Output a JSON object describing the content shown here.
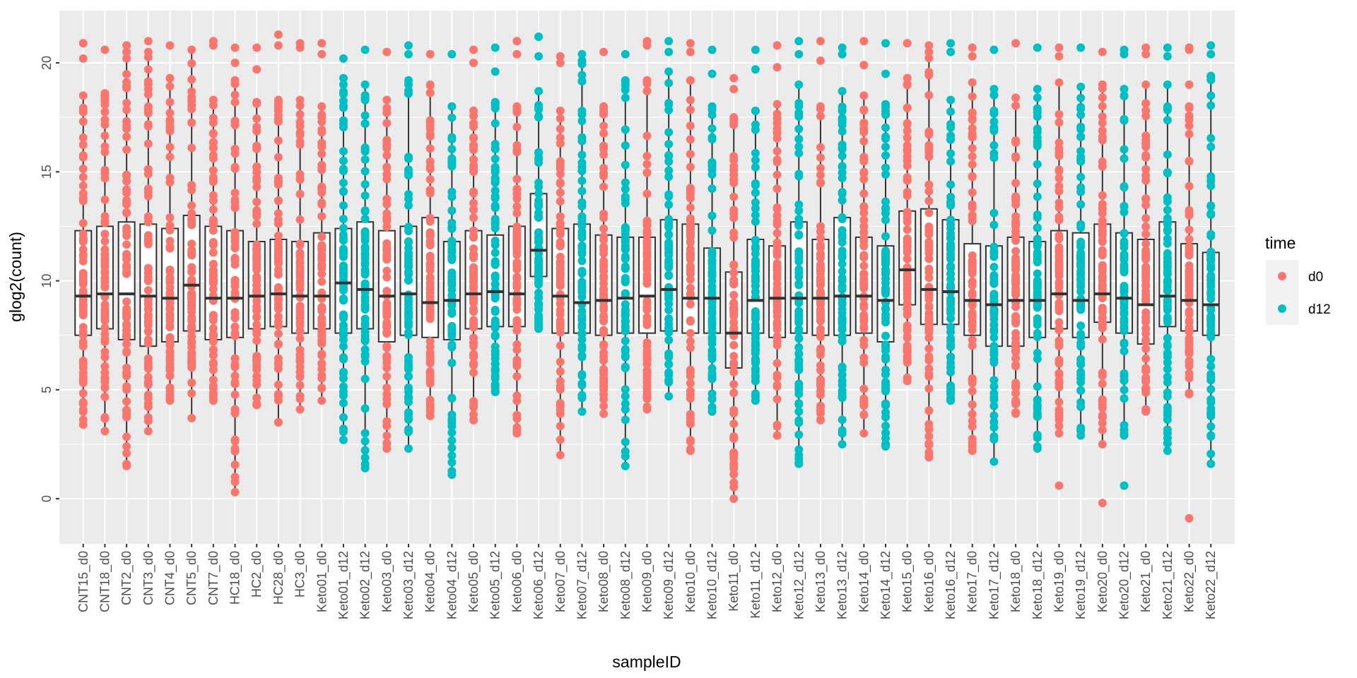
{
  "chart_data": {
    "type": "boxplot",
    "title": "",
    "xlabel": "sampleID",
    "ylabel": "glog2(count)",
    "ylim": [
      -2.07,
      22.4
    ],
    "yticks": [
      0,
      5,
      10,
      15,
      20
    ],
    "grid": true,
    "legend": {
      "title": "time",
      "placement": "right",
      "entries": [
        {
          "label": "d0",
          "color": "#F8766D"
        },
        {
          "label": "d12",
          "color": "#00BFC4"
        }
      ]
    },
    "categories": [
      "CNT15_d0",
      "CNT18_d0",
      "CNT2_d0",
      "CNT3_d0",
      "CNT4_d0",
      "CNT5_d0",
      "CNT7_d0",
      "HC18_d0",
      "HC2_d0",
      "HC28_d0",
      "HC3_d0",
      "Keto01_d0",
      "Keto01_d12",
      "Keto02_d12",
      "Keto03_d0",
      "Keto03_d12",
      "Keto04_d0",
      "Keto04_d12",
      "Keto05_d0",
      "Keto05_d12",
      "Keto06_d0",
      "Keto06_d12",
      "Keto07_d0",
      "Keto07_d12",
      "Keto08_d0",
      "Keto08_d12",
      "Keto09_d0",
      "Keto09_d12",
      "Keto10_d0",
      "Keto10_d12",
      "Keto11_d0",
      "Keto11_d12",
      "Keto12_d0",
      "Keto12_d12",
      "Keto13_d0",
      "Keto13_d12",
      "Keto14_d0",
      "Keto14_d12",
      "Keto15_d0",
      "Keto16_d0",
      "Keto16_d12",
      "Keto17_d0",
      "Keto17_d12",
      "Keto18_d0",
      "Keto18_d12",
      "Keto19_d0",
      "Keto19_d12",
      "Keto20_d0",
      "Keto20_d12",
      "Keto21_d0",
      "Keto21_d12",
      "Keto22_d0",
      "Keto22_d12"
    ],
    "series": [
      {
        "name": "CNT15_d0",
        "time": "d0",
        "q1": 7.5,
        "median": 9.3,
        "q3": 12.3,
        "lo": 3.4,
        "hi": 18.5,
        "outliers": [
          20.2,
          20.9
        ]
      },
      {
        "name": "CNT18_d0",
        "time": "d0",
        "q1": 7.8,
        "median": 9.4,
        "q3": 12.5,
        "lo": 3.1,
        "hi": 18.6,
        "outliers": [
          20.6
        ]
      },
      {
        "name": "CNT2_d0",
        "time": "d0",
        "q1": 7.3,
        "median": 9.4,
        "q3": 12.7,
        "lo": 1.5,
        "hi": 20.5,
        "outliers": [
          20.8
        ]
      },
      {
        "name": "CNT3_d0",
        "time": "d0",
        "q1": 7.0,
        "median": 9.3,
        "q3": 12.6,
        "lo": 3.1,
        "hi": 20.5,
        "outliers": [
          21.0
        ]
      },
      {
        "name": "CNT4_d0",
        "time": "d0",
        "q1": 7.2,
        "median": 9.2,
        "q3": 12.4,
        "lo": 4.5,
        "hi": 19.3,
        "outliers": [
          20.8
        ]
      },
      {
        "name": "CNT5_d0",
        "time": "d0",
        "q1": 7.7,
        "median": 9.8,
        "q3": 13.0,
        "lo": 3.7,
        "hi": 20.6,
        "outliers": []
      },
      {
        "name": "CNT7_d0",
        "time": "d0",
        "q1": 7.3,
        "median": 9.2,
        "q3": 12.5,
        "lo": 4.5,
        "hi": 18.3,
        "outliers": [
          20.8,
          21.0
        ]
      },
      {
        "name": "HC18_d0",
        "time": "d0",
        "q1": 7.4,
        "median": 9.2,
        "q3": 12.3,
        "lo": 0.3,
        "hi": 19.2,
        "outliers": [
          20.0,
          20.7
        ]
      },
      {
        "name": "HC2_d0",
        "time": "d0",
        "q1": 7.8,
        "median": 9.3,
        "q3": 11.8,
        "lo": 4.3,
        "hi": 18.2,
        "outliers": [
          19.7,
          20.7
        ]
      },
      {
        "name": "HC28_d0",
        "time": "d0",
        "q1": 7.9,
        "median": 9.4,
        "q3": 11.9,
        "lo": 3.5,
        "hi": 18.3,
        "outliers": [
          20.8,
          21.3
        ]
      },
      {
        "name": "HC3_d0",
        "time": "d0",
        "q1": 7.6,
        "median": 9.3,
        "q3": 11.8,
        "lo": 4.1,
        "hi": 18.3,
        "outliers": [
          20.7,
          20.9
        ]
      },
      {
        "name": "Keto01_d0",
        "time": "d0",
        "q1": 7.8,
        "median": 9.3,
        "q3": 12.2,
        "lo": 4.5,
        "hi": 18.0,
        "outliers": [
          20.4,
          20.9
        ]
      },
      {
        "name": "Keto01_d12",
        "time": "d12",
        "q1": 7.6,
        "median": 9.9,
        "q3": 12.4,
        "lo": 2.7,
        "hi": 19.3,
        "outliers": [
          20.2
        ]
      },
      {
        "name": "Keto02_d12",
        "time": "d12",
        "q1": 7.8,
        "median": 9.6,
        "q3": 12.7,
        "lo": 1.4,
        "hi": 19.0,
        "outliers": [
          20.6
        ]
      },
      {
        "name": "Keto03_d0",
        "time": "d0",
        "q1": 7.2,
        "median": 9.3,
        "q3": 12.3,
        "lo": 2.3,
        "hi": 18.3,
        "outliers": [
          20.5
        ]
      },
      {
        "name": "Keto03_d12",
        "time": "d12",
        "q1": 7.5,
        "median": 9.4,
        "q3": 12.5,
        "lo": 2.3,
        "hi": 19.2,
        "outliers": [
          20.4,
          20.8
        ]
      },
      {
        "name": "Keto04_d0",
        "time": "d0",
        "q1": 7.4,
        "median": 9.0,
        "q3": 12.9,
        "lo": 3.8,
        "hi": 19.0,
        "outliers": [
          20.4
        ]
      },
      {
        "name": "Keto04_d12",
        "time": "d12",
        "q1": 7.3,
        "median": 9.1,
        "q3": 11.8,
        "lo": 1.1,
        "hi": 18.0,
        "outliers": [
          20.4
        ]
      },
      {
        "name": "Keto05_d0",
        "time": "d0",
        "q1": 7.8,
        "median": 9.4,
        "q3": 12.3,
        "lo": 3.6,
        "hi": 17.8,
        "outliers": [
          20.0,
          20.6
        ]
      },
      {
        "name": "Keto05_d12",
        "time": "d12",
        "q1": 7.9,
        "median": 9.5,
        "q3": 12.1,
        "lo": 4.9,
        "hi": 18.2,
        "outliers": [
          19.6,
          20.7
        ]
      },
      {
        "name": "Keto06_d0",
        "time": "d0",
        "q1": 7.9,
        "median": 9.4,
        "q3": 12.5,
        "lo": 3.0,
        "hi": 18.0,
        "outliers": [
          20.4,
          21.0
        ]
      },
      {
        "name": "Keto06_d12",
        "time": "d12",
        "q1": 10.2,
        "median": 11.4,
        "q3": 14.0,
        "lo": 7.8,
        "hi": 18.7,
        "outliers": [
          20.3,
          21.2
        ]
      },
      {
        "name": "Keto07_d0",
        "time": "d0",
        "q1": 7.6,
        "median": 9.3,
        "q3": 12.4,
        "lo": 2.0,
        "hi": 17.8,
        "outliers": [
          20.0,
          20.3
        ]
      },
      {
        "name": "Keto07_d12",
        "time": "d12",
        "q1": 7.6,
        "median": 9.0,
        "q3": 12.6,
        "lo": 4.0,
        "hi": 20.1,
        "outliers": [
          20.4
        ]
      },
      {
        "name": "Keto08_d0",
        "time": "d0",
        "q1": 7.5,
        "median": 9.1,
        "q3": 12.1,
        "lo": 3.9,
        "hi": 18.0,
        "outliers": [
          20.5
        ]
      },
      {
        "name": "Keto08_d12",
        "time": "d12",
        "q1": 7.6,
        "median": 9.2,
        "q3": 12.0,
        "lo": 1.5,
        "hi": 19.2,
        "outliers": [
          20.4
        ]
      },
      {
        "name": "Keto09_d0",
        "time": "d0",
        "q1": 7.6,
        "median": 9.3,
        "q3": 12.0,
        "lo": 4.1,
        "hi": 19.2,
        "outliers": [
          20.8,
          21.0
        ]
      },
      {
        "name": "Keto09_d12",
        "time": "d12",
        "q1": 7.7,
        "median": 9.6,
        "q3": 12.8,
        "lo": 4.7,
        "hi": 19.6,
        "outliers": [
          20.5,
          21.0
        ]
      },
      {
        "name": "Keto10_d0",
        "time": "d0",
        "q1": 7.6,
        "median": 9.2,
        "q3": 12.6,
        "lo": 2.2,
        "hi": 19.2,
        "outliers": [
          20.5,
          20.9
        ]
      },
      {
        "name": "Keto10_d12",
        "time": "d12",
        "q1": 7.6,
        "median": 9.2,
        "q3": 11.5,
        "lo": 4.0,
        "hi": 18.0,
        "outliers": [
          19.5,
          20.6
        ]
      },
      {
        "name": "Keto11_d0",
        "time": "d0",
        "q1": 6.0,
        "median": 7.6,
        "q3": 10.4,
        "lo": 0.0,
        "hi": 17.5,
        "outliers": [
          18.8,
          19.3
        ]
      },
      {
        "name": "Keto11_d12",
        "time": "d12",
        "q1": 7.6,
        "median": 9.1,
        "q3": 11.9,
        "lo": 4.5,
        "hi": 17.8,
        "outliers": [
          19.7,
          20.6
        ]
      },
      {
        "name": "Keto12_d0",
        "time": "d0",
        "q1": 7.4,
        "median": 9.2,
        "q3": 11.6,
        "lo": 2.9,
        "hi": 18.1,
        "outliers": [
          19.8,
          20.8
        ]
      },
      {
        "name": "Keto12_d12",
        "time": "d12",
        "q1": 7.6,
        "median": 9.2,
        "q3": 12.7,
        "lo": 1.6,
        "hi": 19.0,
        "outliers": [
          20.4,
          21.0
        ]
      },
      {
        "name": "Keto13_d0",
        "time": "d0",
        "q1": 7.5,
        "median": 9.2,
        "q3": 11.9,
        "lo": 3.6,
        "hi": 18.0,
        "outliers": [
          20.1,
          21.0
        ]
      },
      {
        "name": "Keto13_d12",
        "time": "d12",
        "q1": 7.5,
        "median": 9.3,
        "q3": 12.9,
        "lo": 2.5,
        "hi": 18.7,
        "outliers": [
          20.4,
          20.7
        ]
      },
      {
        "name": "Keto14_d0",
        "time": "d0",
        "q1": 7.6,
        "median": 9.3,
        "q3": 12.0,
        "lo": 3.0,
        "hi": 18.5,
        "outliers": [
          19.9,
          21.0
        ]
      },
      {
        "name": "Keto14_d12",
        "time": "d12",
        "q1": 7.2,
        "median": 9.1,
        "q3": 11.6,
        "lo": 2.4,
        "hi": 18.1,
        "outliers": [
          19.5,
          20.9
        ]
      },
      {
        "name": "Keto15_d0",
        "time": "d0",
        "q1": 8.9,
        "median": 10.5,
        "q3": 13.2,
        "lo": 5.4,
        "hi": 19.3,
        "outliers": [
          20.9
        ]
      },
      {
        "name": "Keto16_d0",
        "time": "d0",
        "q1": 8.0,
        "median": 9.6,
        "q3": 13.3,
        "lo": 1.9,
        "hi": 20.5,
        "outliers": [
          20.8
        ]
      },
      {
        "name": "Keto16_d12",
        "time": "d12",
        "q1": 8.0,
        "median": 9.5,
        "q3": 12.8,
        "lo": 4.5,
        "hi": 18.3,
        "outliers": [
          20.5,
          20.9
        ]
      },
      {
        "name": "Keto17_d0",
        "time": "d0",
        "q1": 7.5,
        "median": 9.1,
        "q3": 11.7,
        "lo": 2.2,
        "hi": 19.1,
        "outliers": [
          20.3,
          20.7
        ]
      },
      {
        "name": "Keto17_d12",
        "time": "d12",
        "q1": 7.0,
        "median": 8.9,
        "q3": 11.6,
        "lo": 1.7,
        "hi": 18.8,
        "outliers": [
          20.6
        ]
      },
      {
        "name": "Keto18_d0",
        "time": "d0",
        "q1": 7.0,
        "median": 9.1,
        "q3": 12.0,
        "lo": 3.9,
        "hi": 18.4,
        "outliers": [
          20.9
        ]
      },
      {
        "name": "Keto18_d12",
        "time": "d12",
        "q1": 7.4,
        "median": 9.1,
        "q3": 11.8,
        "lo": 2.3,
        "hi": 18.8,
        "outliers": [
          20.7
        ]
      },
      {
        "name": "Keto19_d0",
        "time": "d0",
        "q1": 7.8,
        "median": 9.4,
        "q3": 12.3,
        "lo": 3.0,
        "hi": 19.1,
        "outliers": [
          0.6,
          20.3,
          20.7
        ]
      },
      {
        "name": "Keto19_d12",
        "time": "d12",
        "q1": 7.4,
        "median": 9.1,
        "q3": 12.2,
        "lo": 2.9,
        "hi": 18.9,
        "outliers": [
          20.7
        ]
      },
      {
        "name": "Keto20_d0",
        "time": "d0",
        "q1": 8.1,
        "median": 9.4,
        "q3": 12.6,
        "lo": 2.5,
        "hi": 19.0,
        "outliers": [
          -0.2,
          20.5
        ]
      },
      {
        "name": "Keto20_d12",
        "time": "d12",
        "q1": 7.6,
        "median": 9.2,
        "q3": 12.2,
        "lo": 2.9,
        "hi": 18.8,
        "outliers": [
          0.6,
          20.4,
          20.6
        ]
      },
      {
        "name": "Keto21_d0",
        "time": "d0",
        "q1": 7.1,
        "median": 8.9,
        "q3": 11.9,
        "lo": 4.0,
        "hi": 19.0,
        "outliers": [
          20.4,
          20.7
        ]
      },
      {
        "name": "Keto21_d12",
        "time": "d12",
        "q1": 7.9,
        "median": 9.3,
        "q3": 12.7,
        "lo": 2.2,
        "hi": 19.0,
        "outliers": [
          20.3,
          20.7
        ]
      },
      {
        "name": "Keto22_d0",
        "time": "d0",
        "q1": 7.7,
        "median": 9.1,
        "q3": 11.7,
        "lo": 4.8,
        "hi": 18.0,
        "outliers": [
          -0.9,
          19.0,
          20.6,
          20.7
        ]
      },
      {
        "name": "Keto22_d12",
        "time": "d12",
        "q1": 7.5,
        "median": 8.9,
        "q3": 11.3,
        "lo": 1.6,
        "hi": 19.4,
        "outliers": [
          20.4,
          20.8
        ]
      }
    ]
  }
}
